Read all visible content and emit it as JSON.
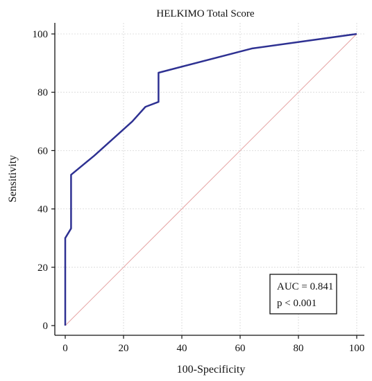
{
  "chart_data": {
    "type": "line",
    "title": "HELKIMO Total Score",
    "xlabel": "100-Specificity",
    "ylabel": "Sensitivity",
    "xlim": [
      0,
      100
    ],
    "ylim": [
      0,
      100
    ],
    "x_ticks": [
      0,
      20,
      40,
      60,
      80,
      100
    ],
    "y_ticks": [
      0,
      20,
      40,
      60,
      80,
      100
    ],
    "grid": true,
    "series": [
      {
        "color": "#2e3192",
        "points": [
          [
            0,
            0
          ],
          [
            0,
            30
          ],
          [
            2,
            33.3
          ],
          [
            2,
            51.7
          ],
          [
            10,
            58.3
          ],
          [
            23,
            70
          ],
          [
            27.5,
            75
          ],
          [
            32,
            76.7
          ],
          [
            32,
            86.7
          ],
          [
            64,
            95
          ],
          [
            100,
            100
          ]
        ]
      }
    ],
    "reference_line": {
      "points": [
        [
          0,
          0
        ],
        [
          100,
          100
        ]
      ],
      "color": "#e6a3a3"
    },
    "annotation": {
      "lines": [
        "AUC = 0.841",
        "p < 0.001"
      ]
    }
  }
}
